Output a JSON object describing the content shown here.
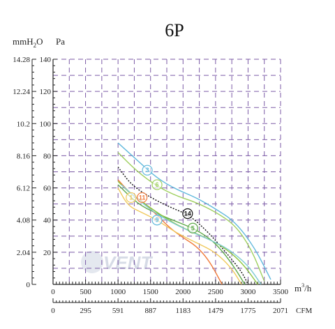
{
  "chart_data": {
    "type": "line",
    "title": "6P",
    "grid": true,
    "xlim": [
      0,
      3500
    ],
    "ylim": [
      0,
      140
    ],
    "left_unit_label": "mmH",
    "left_unit_sub": "2",
    "left_unit_tail": "O",
    "pa_label": "Pa",
    "x_unit_label": "m",
    "x_unit_sup": "3",
    "x_unit_tail": "/h",
    "cfm_label": "CFM",
    "watermark": "VENT",
    "x_ticks": [
      "0",
      "500",
      "1000",
      "1500",
      "2000",
      "2500",
      "3000",
      "3500"
    ],
    "cfm_ticks": [
      "0",
      "295",
      "591",
      "887",
      "1183",
      "1479",
      "1775",
      "2071"
    ],
    "pa_ticks": [
      "20",
      "40",
      "60",
      "80",
      "100",
      "120",
      "140"
    ],
    "mm_ticks": [
      "0",
      "2.04",
      "4.08",
      "6.12",
      "8.16",
      "10.2",
      "12.24",
      "14.28"
    ],
    "series": [
      {
        "marker": "3",
        "color": "#5fb8dc",
        "x": [
          1000,
          1300,
          1600,
          1900,
          2200,
          2500,
          2800,
          3100,
          3350
        ],
        "y": [
          88,
          77,
          66,
          59,
          54,
          47,
          39,
          23,
          3
        ]
      },
      {
        "marker": "6",
        "color": "#9ecf5e",
        "x": [
          1000,
          1300,
          1600,
          1900,
          2200,
          2500,
          2800,
          3050,
          3250
        ],
        "y": [
          82,
          70,
          61,
          55,
          51,
          45,
          37,
          22,
          2
        ]
      },
      {
        "marker": "14",
        "color": "#111111",
        "x": [
          1000,
          1200,
          1500,
          1800,
          2100,
          2400,
          2700,
          2900,
          3000
        ],
        "y": [
          73,
          62,
          54,
          48,
          43,
          32,
          18,
          8,
          0
        ]
      },
      {
        "marker": "5",
        "color": "#5faa4a",
        "x": [
          1000,
          1300,
          1600,
          1900,
          2150,
          2400,
          2600,
          2800,
          2950
        ],
        "y": [
          62,
          50,
          44,
          39,
          35,
          29,
          21,
          10,
          0
        ]
      },
      {
        "marker": "11",
        "color": "#f07a3a",
        "x": [
          1000,
          1200,
          1400,
          1600,
          1800,
          2000,
          2200,
          2400,
          2600
        ],
        "y": [
          65,
          56,
          51,
          43,
          35,
          29,
          24,
          15,
          0
        ]
      },
      {
        "marker": "1",
        "color": "#f0c95c",
        "x": [
          1000,
          1150,
          1350,
          1600,
          1900,
          2200,
          2500,
          2750,
          2900
        ],
        "y": [
          60,
          49,
          45,
          40,
          32,
          26,
          20,
          10,
          0
        ]
      },
      {
        "marker": "9",
        "color": "#8cc63f",
        "x": [
          1000,
          1200,
          1450,
          1700,
          2000,
          2300,
          2600,
          2900,
          3150
        ],
        "y": [
          64,
          56,
          49,
          42,
          35,
          30,
          24,
          14,
          0
        ]
      },
      {
        "marker": "2",
        "color": "#7fcbd4",
        "x": [
          1050,
          1300,
          1550,
          1800,
          2100,
          2400,
          2700,
          3000,
          3200
        ],
        "y": [
          62,
          53,
          45,
          39,
          33,
          28,
          22,
          12,
          0
        ]
      }
    ],
    "markers": [
      {
        "label": "3",
        "x": 1450,
        "y": 71,
        "color": "#5fb8dc"
      },
      {
        "label": "6",
        "x": 1600,
        "y": 62,
        "color": "#9ecf5e"
      },
      {
        "label": "14",
        "x": 2070,
        "y": 44,
        "color": "#111111"
      },
      {
        "label": "5",
        "x": 2150,
        "y": 35,
        "color": "#5faa4a"
      },
      {
        "label": "11",
        "x": 1370,
        "y": 54,
        "color": "#f07a3a"
      },
      {
        "label": "1",
        "x": 1200,
        "y": 54,
        "color": "#f0c95c"
      },
      {
        "label": "9",
        "x": 1600,
        "y": 40,
        "color": "#5fb8dc"
      }
    ]
  }
}
